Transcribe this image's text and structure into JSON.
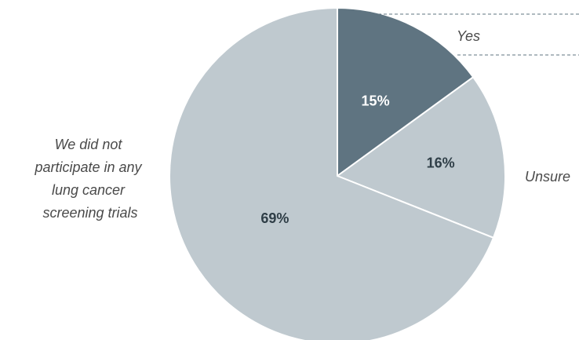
{
  "chart_data": {
    "type": "pie",
    "start_angle_deg": 0,
    "direction": "clockwise",
    "slices": [
      {
        "label": "Yes",
        "value": 15,
        "value_label": "15%",
        "color": "#5f7481",
        "text_color": "#ffffff"
      },
      {
        "label": "Unsure",
        "value": 16,
        "value_label": "16%",
        "color": "#bfc9cf",
        "text_color": "#2f3e47"
      },
      {
        "label": "We did not participate in any lung cancer screening trials",
        "label_lines": [
          "We did not",
          "participate in any",
          "lung cancer",
          "screening trials"
        ],
        "value": 69,
        "value_label": "69%",
        "color": "#bfc9cf",
        "text_color": "#2f3e47"
      }
    ],
    "slice_border_color": "#ffffff",
    "leader_line_color": "#5f7481"
  }
}
